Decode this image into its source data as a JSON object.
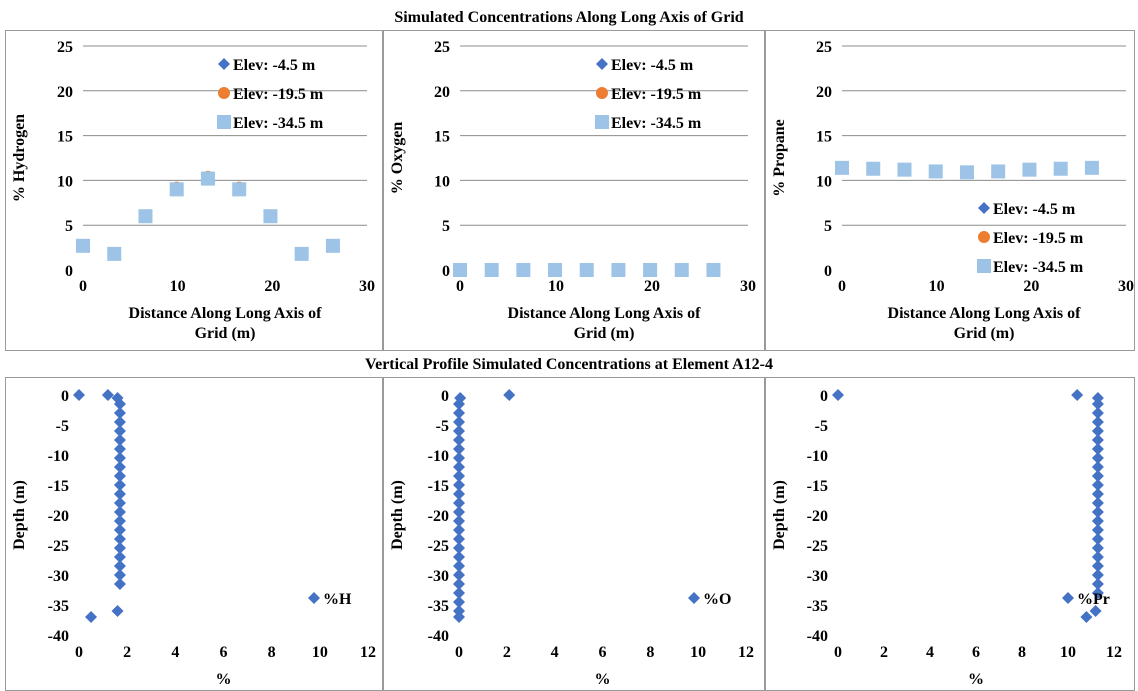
{
  "section_titles": {
    "top": "Simulated Concentrations Along Long Axis of Grid",
    "bottom": "Vertical Profile Simulated Concentrations at Element A12-4"
  },
  "colors": {
    "series_a": "#4472c4",
    "series_b": "#ed7d31",
    "series_c": "#9dc3e6",
    "gridline": "#8c8c8c"
  },
  "chart_data": [
    {
      "id": "hydrogen-grid",
      "type": "scatter",
      "xlabel": "Distance Along Long Axis of Grid (m)",
      "ylabel": "% Hydrogen",
      "xlim": [
        0,
        30
      ],
      "ylim": [
        0,
        25
      ],
      "xticks": [
        0,
        10,
        20,
        30
      ],
      "yticks": [
        0,
        5,
        10,
        15,
        20,
        25
      ],
      "grid": "horizontal",
      "legend_position": "top-right",
      "series": [
        {
          "name": "Elev: -4.5 m",
          "marker": "diamond",
          "color": "#4472c4",
          "x": [
            0,
            3.3,
            6.6,
            9.9,
            13.2,
            16.5,
            19.8,
            23.1,
            26.4
          ],
          "y": [
            2.7,
            1.8,
            6.0,
            9.0,
            10.2,
            9.0,
            6.0,
            1.8,
            2.7
          ]
        },
        {
          "name": "Elev: -19.5 m",
          "marker": "circle",
          "color": "#ed7d31",
          "x": [
            0,
            3.3,
            6.6,
            9.9,
            13.2,
            16.5,
            19.8,
            23.1,
            26.4
          ],
          "y": [
            2.8,
            1.9,
            6.1,
            9.2,
            10.4,
            9.2,
            6.1,
            1.9,
            2.8
          ]
        },
        {
          "name": "Elev: -34.5 m",
          "marker": "square",
          "color": "#9dc3e6",
          "x": [
            0,
            3.3,
            6.6,
            9.9,
            13.2,
            16.5,
            19.8,
            23.1,
            26.4
          ],
          "y": [
            2.7,
            1.8,
            6.0,
            9.0,
            10.2,
            9.0,
            6.0,
            1.8,
            2.7
          ]
        }
      ]
    },
    {
      "id": "oxygen-grid",
      "type": "scatter",
      "xlabel": "Distance Along Long Axis of Grid (m)",
      "ylabel": "% Oxygen",
      "xlim": [
        0,
        30
      ],
      "ylim": [
        0,
        25
      ],
      "xticks": [
        0,
        10,
        20,
        30
      ],
      "yticks": [
        0,
        5,
        10,
        15,
        20,
        25
      ],
      "grid": "horizontal",
      "legend_position": "top-right",
      "series": [
        {
          "name": "Elev: -4.5 m",
          "marker": "diamond",
          "color": "#4472c4",
          "x": [
            0,
            3.3,
            6.6,
            9.9,
            13.2,
            16.5,
            19.8,
            23.1,
            26.4
          ],
          "y": [
            0,
            0,
            0,
            0,
            0,
            0,
            0,
            0,
            0
          ]
        },
        {
          "name": "Elev: -19.5 m",
          "marker": "circle",
          "color": "#ed7d31",
          "x": [
            0,
            3.3,
            6.6,
            9.9,
            13.2,
            16.5,
            19.8,
            23.1,
            26.4
          ],
          "y": [
            0,
            0,
            0,
            0,
            0,
            0,
            0,
            0,
            0
          ]
        },
        {
          "name": "Elev: -34.5 m",
          "marker": "square",
          "color": "#9dc3e6",
          "x": [
            0,
            3.3,
            6.6,
            9.9,
            13.2,
            16.5,
            19.8,
            23.1,
            26.4
          ],
          "y": [
            0,
            0,
            0,
            0,
            0,
            0,
            0,
            0,
            0
          ]
        }
      ]
    },
    {
      "id": "propane-grid",
      "type": "scatter",
      "xlabel": "Distance Along Long Axis of Grid (m)",
      "ylabel": "% Propane",
      "xlim": [
        0,
        30
      ],
      "ylim": [
        0,
        25
      ],
      "xticks": [
        0,
        10,
        20,
        30
      ],
      "yticks": [
        0,
        5,
        10,
        15,
        20,
        25
      ],
      "grid": "horizontal",
      "legend_position": "bottom-right",
      "series": [
        {
          "name": "Elev: -4.5 m",
          "marker": "diamond",
          "color": "#4472c4",
          "x": [
            0,
            3.3,
            6.6,
            9.9,
            13.2,
            16.5,
            19.8,
            23.1,
            26.4
          ],
          "y": [
            11.4,
            11.3,
            11.2,
            11.0,
            10.9,
            11.0,
            11.2,
            11.3,
            11.4
          ]
        },
        {
          "name": "Elev: -19.5 m",
          "marker": "circle",
          "color": "#ed7d31",
          "x": [
            0,
            3.3,
            6.6,
            9.9,
            13.2,
            16.5,
            19.8,
            23.1,
            26.4
          ],
          "y": [
            11.4,
            11.3,
            11.2,
            11.0,
            10.9,
            11.0,
            11.2,
            11.3,
            11.4
          ]
        },
        {
          "name": "Elev: -34.5 m",
          "marker": "square",
          "color": "#9dc3e6",
          "x": [
            0,
            3.3,
            6.6,
            9.9,
            13.2,
            16.5,
            19.8,
            23.1,
            26.4
          ],
          "y": [
            11.4,
            11.3,
            11.2,
            11.0,
            10.9,
            11.0,
            11.2,
            11.3,
            11.4
          ]
        }
      ]
    },
    {
      "id": "hydrogen-profile",
      "type": "scatter",
      "xlabel": "%",
      "ylabel": "Depth (m)",
      "xlim": [
        0,
        12
      ],
      "ylim": [
        -40,
        0
      ],
      "xticks": [
        0,
        2,
        4,
        6,
        8,
        10,
        12
      ],
      "yticks": [
        0,
        -5,
        -10,
        -15,
        -20,
        -25,
        -30,
        -35,
        -40
      ],
      "grid": "none",
      "legend_position": "right",
      "series": [
        {
          "name": "%H",
          "marker": "diamond",
          "color": "#4472c4",
          "x": [
            0,
            1.2,
            1.6,
            1.7,
            1.7,
            1.7,
            1.7,
            1.7,
            1.7,
            1.7,
            1.7,
            1.7,
            1.7,
            1.7,
            1.7,
            1.7,
            1.7,
            1.7,
            1.7,
            1.7,
            1.7,
            1.7,
            1.7,
            1.7,
            1.6,
            0.5
          ],
          "y": [
            0,
            0,
            -0.5,
            -1.5,
            -3,
            -4.5,
            -6,
            -7.5,
            -9,
            -10.5,
            -12,
            -13.5,
            -15,
            -16.5,
            -18,
            -19.5,
            -21,
            -22.5,
            -24,
            -25.5,
            -27,
            -28.5,
            -30,
            -31.5,
            -36,
            -37
          ]
        }
      ]
    },
    {
      "id": "oxygen-profile",
      "type": "scatter",
      "xlabel": "%",
      "ylabel": "Depth (m)",
      "xlim": [
        0,
        12
      ],
      "ylim": [
        -40,
        0
      ],
      "xticks": [
        0,
        2,
        4,
        6,
        8,
        10,
        12
      ],
      "yticks": [
        0,
        -5,
        -10,
        -15,
        -20,
        -25,
        -30,
        -35,
        -40
      ],
      "grid": "none",
      "legend_position": "right",
      "series": [
        {
          "name": "%O",
          "marker": "diamond",
          "color": "#4472c4",
          "x": [
            2.1,
            0.05,
            0,
            0,
            0,
            0,
            0,
            0,
            0,
            0,
            0,
            0,
            0,
            0,
            0,
            0,
            0,
            0,
            0,
            0,
            0,
            0,
            0,
            0,
            0,
            0,
            0
          ],
          "y": [
            0,
            -0.5,
            -1.5,
            -3,
            -4.5,
            -6,
            -7.5,
            -9,
            -10.5,
            -12,
            -13.5,
            -15,
            -16.5,
            -18,
            -19.5,
            -21,
            -22.5,
            -24,
            -25.5,
            -27,
            -28.5,
            -30,
            -31.5,
            -33,
            -34.5,
            -36,
            -37
          ]
        }
      ]
    },
    {
      "id": "propane-profile",
      "type": "scatter",
      "xlabel": "%",
      "ylabel": "Depth (m)",
      "xlim": [
        0,
        12
      ],
      "ylim": [
        -40,
        0
      ],
      "xticks": [
        0,
        2,
        4,
        6,
        8,
        10,
        12
      ],
      "yticks": [
        0,
        -5,
        -10,
        -15,
        -20,
        -25,
        -30,
        -35,
        -40
      ],
      "grid": "none",
      "legend_position": "right",
      "series": [
        {
          "name": "%Pr",
          "marker": "diamond",
          "color": "#4472c4",
          "x": [
            0,
            10.4,
            11.3,
            11.3,
            11.3,
            11.3,
            11.3,
            11.3,
            11.3,
            11.3,
            11.3,
            11.3,
            11.3,
            11.3,
            11.3,
            11.3,
            11.3,
            11.3,
            11.3,
            11.3,
            11.3,
            11.3,
            11.3,
            11.3,
            11.3,
            11.2,
            10.8
          ],
          "y": [
            0,
            0,
            -0.5,
            -1.5,
            -3,
            -4.5,
            -6,
            -7.5,
            -9,
            -10.5,
            -12,
            -13.5,
            -15,
            -16.5,
            -18,
            -19.5,
            -21,
            -22.5,
            -24,
            -25.5,
            -27,
            -28.5,
            -30,
            -31.5,
            -33,
            -36,
            -37
          ]
        }
      ]
    }
  ]
}
